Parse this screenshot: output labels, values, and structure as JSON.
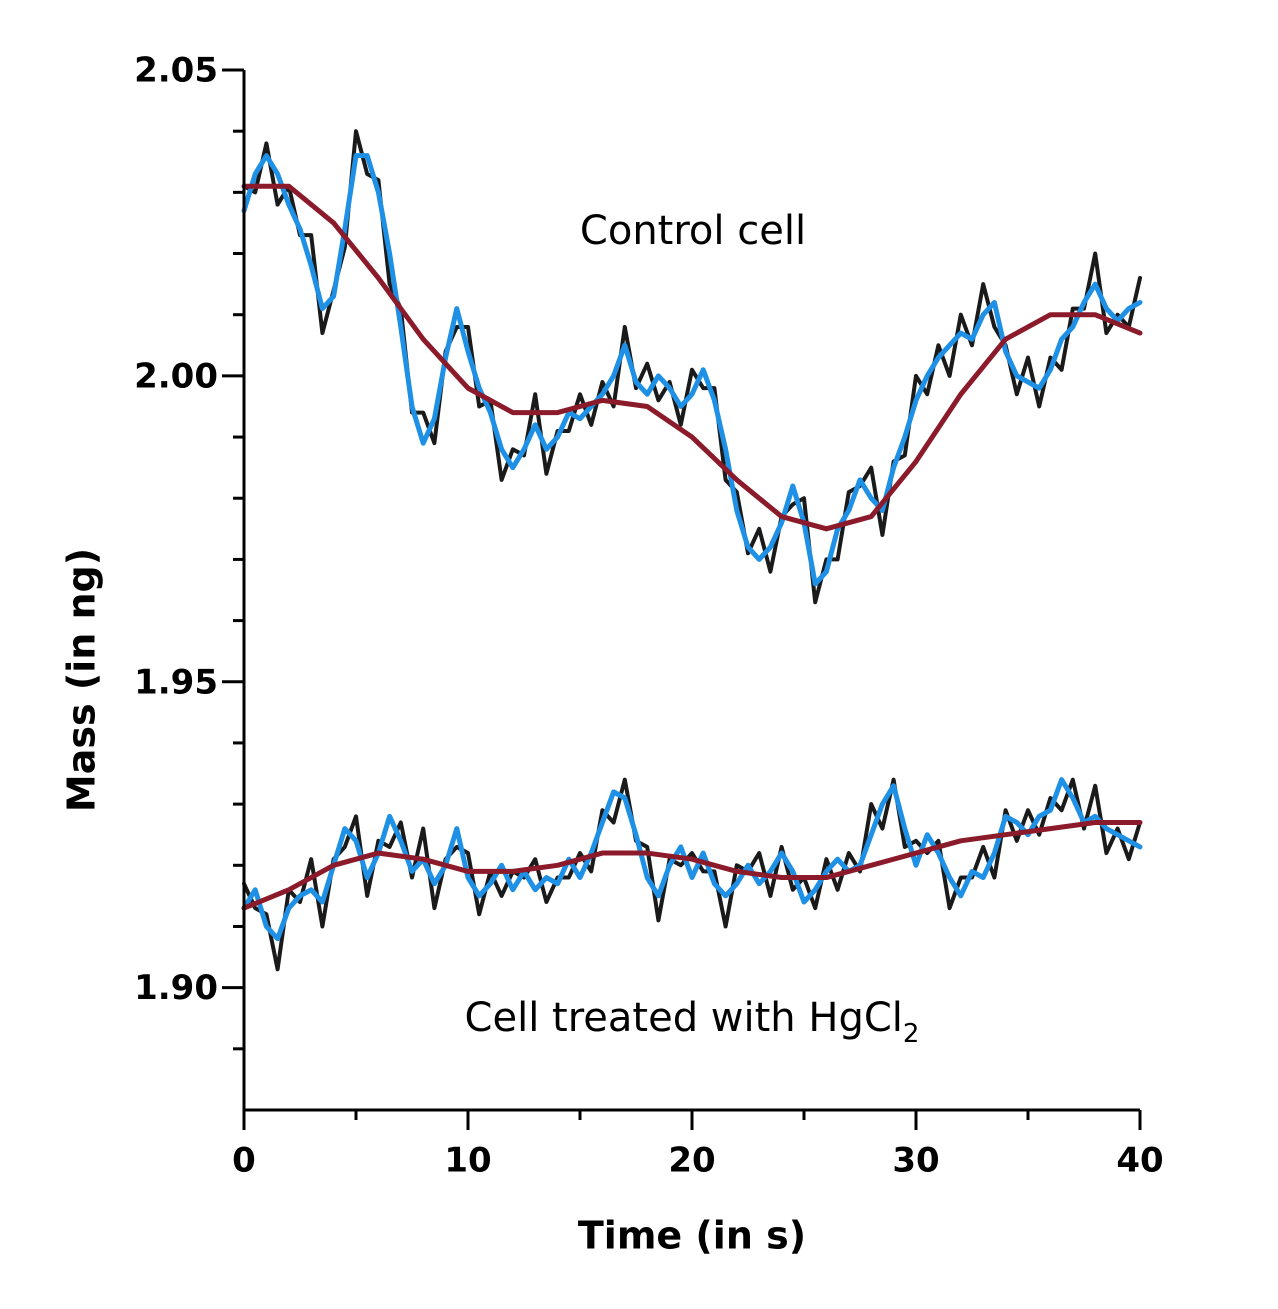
{
  "chart_data": {
    "type": "line",
    "xlabel": "Time (in s)",
    "ylabel": "Mass (in ng)",
    "annotations": [
      {
        "text": "Control cell"
      },
      {
        "text": "Cell treated with HgCl",
        "subscript": "2"
      }
    ],
    "xlim": [
      0,
      40
    ],
    "xticks": [
      0,
      10,
      20,
      30,
      40
    ],
    "xticks_minor": [
      5,
      15,
      25,
      35
    ],
    "ylim": [
      1.88,
      2.05
    ],
    "yticks": [
      {
        "value": 1.9,
        "label": "1.90"
      },
      1.95,
      {
        "value": 2,
        "label": "2.00"
      },
      2.05
    ],
    "yticks_minor": [
      1.89,
      1.91,
      1.92,
      1.93,
      1.94,
      1.96,
      1.97,
      1.98,
      1.99,
      2.01,
      2.02,
      2.03,
      2.04
    ],
    "x": [
      0,
      0.5,
      1,
      1.5,
      2,
      2.5,
      3,
      3.5,
      4,
      4.5,
      5,
      5.5,
      6,
      6.5,
      7,
      7.5,
      8,
      8.5,
      9,
      9.5,
      10,
      10.5,
      11,
      11.5,
      12,
      12.5,
      13,
      13.5,
      14,
      14.5,
      15,
      15.5,
      16,
      16.5,
      17,
      17.5,
      18,
      18.5,
      19,
      19.5,
      20,
      20.5,
      21,
      21.5,
      22,
      22.5,
      23,
      23.5,
      24,
      24.5,
      25,
      25.5,
      26,
      26.5,
      27,
      27.5,
      28,
      28.5,
      29,
      29.5,
      30,
      30.5,
      31,
      31.5,
      32,
      32.5,
      33,
      33.5,
      34,
      34.5,
      35,
      35.5,
      36,
      36.5,
      37,
      37.5,
      38,
      38.5,
      39,
      39.5,
      40
    ],
    "series": [
      {
        "color": "#1a1a1a",
        "width": 4,
        "values": [
          2.031,
          2.03,
          2.038,
          2.028,
          2.031,
          2.023,
          2.023,
          2.007,
          2.014,
          2.021,
          2.04,
          2.033,
          2.032,
          2.015,
          2.011,
          1.994,
          1.994,
          1.989,
          2.004,
          2.008,
          2.008,
          1.995,
          1.996,
          1.983,
          1.988,
          1.987,
          1.997,
          1.984,
          1.991,
          1.991,
          1.997,
          1.992,
          1.999,
          1.995,
          2.008,
          1.998,
          2.002,
          1.996,
          1.999,
          1.992,
          2.001,
          1.998,
          1.998,
          1.983,
          1.981,
          1.971,
          1.975,
          1.968,
          1.977,
          1.979,
          1.98,
          1.963,
          1.97,
          1.97,
          1.981,
          1.982,
          1.985,
          1.974,
          1.986,
          1.987,
          2.0,
          1.997,
          2.005,
          2.0,
          2.01,
          2.005,
          2.015,
          2.008,
          2.005,
          1.997,
          2.003,
          1.995,
          2.003,
          2.001,
          2.011,
          2.011,
          2.02,
          2.007,
          2.01,
          2.008,
          2.016
        ]
      },
      {
        "color": "#1e90e6",
        "width": 5,
        "values": [
          2.027,
          2.033,
          2.036,
          2.033,
          2.028,
          2.024,
          2.018,
          2.011,
          2.013,
          2.024,
          2.036,
          2.036,
          2.03,
          2.02,
          2.008,
          1.995,
          1.989,
          1.993,
          2.003,
          2.011,
          2.004,
          1.998,
          1.994,
          1.988,
          1.985,
          1.988,
          1.992,
          1.988,
          1.99,
          1.994,
          1.993,
          1.995,
          1.997,
          2.0,
          2.005,
          1.999,
          1.997,
          2.0,
          1.998,
          1.995,
          1.997,
          2.001,
          1.996,
          1.988,
          1.978,
          1.972,
          1.97,
          1.972,
          1.976,
          1.982,
          1.976,
          1.966,
          1.968,
          1.975,
          1.978,
          1.983,
          1.98,
          1.978,
          1.985,
          1.99,
          1.996,
          2.0,
          2.003,
          2.005,
          2.007,
          2.006,
          2.01,
          2.012,
          2.004,
          2.0,
          1.999,
          1.998,
          2.001,
          2.006,
          2.008,
          2.012,
          2.015,
          2.011,
          2.009,
          2.011,
          2.012
        ]
      },
      {
        "color": "#8b1a2a",
        "width": 5,
        "x": [
          0,
          2,
          4,
          6,
          8,
          10,
          12,
          14,
          16,
          18,
          20,
          22,
          24,
          26,
          28,
          30,
          32,
          34,
          36,
          38,
          40
        ],
        "values": [
          2.031,
          2.031,
          2.025,
          2.016,
          2.006,
          1.998,
          1.994,
          1.994,
          1.996,
          1.995,
          1.99,
          1.983,
          1.977,
          1.975,
          1.977,
          1.986,
          1.997,
          2.006,
          2.01,
          2.01,
          2.007
        ]
      },
      {
        "color": "#1a1a1a",
        "width": 4,
        "values": [
          1.917,
          1.913,
          1.912,
          1.903,
          1.916,
          1.914,
          1.921,
          1.91,
          1.921,
          1.923,
          1.928,
          1.915,
          1.924,
          1.923,
          1.927,
          1.918,
          1.926,
          1.913,
          1.921,
          1.923,
          1.922,
          1.912,
          1.919,
          1.915,
          1.919,
          1.918,
          1.921,
          1.914,
          1.918,
          1.918,
          1.922,
          1.919,
          1.929,
          1.927,
          1.934,
          1.924,
          1.923,
          1.911,
          1.921,
          1.92,
          1.922,
          1.919,
          1.919,
          1.91,
          1.92,
          1.919,
          1.922,
          1.915,
          1.923,
          1.916,
          1.918,
          1.913,
          1.921,
          1.916,
          1.922,
          1.919,
          1.93,
          1.926,
          1.934,
          1.923,
          1.924,
          1.922,
          1.924,
          1.913,
          1.918,
          1.918,
          1.923,
          1.918,
          1.929,
          1.924,
          1.929,
          1.925,
          1.931,
          1.929,
          1.934,
          1.926,
          1.933,
          1.922,
          1.926,
          1.921,
          1.927
        ]
      },
      {
        "color": "#1e90e6",
        "width": 5,
        "values": [
          1.913,
          1.916,
          1.91,
          1.908,
          1.913,
          1.915,
          1.916,
          1.914,
          1.92,
          1.926,
          1.924,
          1.918,
          1.922,
          1.928,
          1.924,
          1.919,
          1.921,
          1.917,
          1.92,
          1.926,
          1.918,
          1.915,
          1.917,
          1.92,
          1.916,
          1.919,
          1.916,
          1.918,
          1.917,
          1.921,
          1.918,
          1.922,
          1.927,
          1.932,
          1.931,
          1.925,
          1.918,
          1.915,
          1.92,
          1.923,
          1.918,
          1.922,
          1.917,
          1.915,
          1.917,
          1.92,
          1.917,
          1.919,
          1.922,
          1.919,
          1.914,
          1.916,
          1.919,
          1.921,
          1.919,
          1.92,
          1.925,
          1.93,
          1.933,
          1.926,
          1.92,
          1.925,
          1.922,
          1.918,
          1.915,
          1.919,
          1.918,
          1.922,
          1.928,
          1.927,
          1.925,
          1.928,
          1.929,
          1.934,
          1.931,
          1.927,
          1.928,
          1.926,
          1.925,
          1.924,
          1.923
        ]
      },
      {
        "color": "#8b1a2a",
        "width": 5,
        "x": [
          0,
          2,
          4,
          6,
          8,
          10,
          12,
          14,
          16,
          18,
          20,
          22,
          24,
          26,
          28,
          30,
          32,
          34,
          36,
          38,
          40
        ],
        "values": [
          1.913,
          1.916,
          1.92,
          1.922,
          1.921,
          1.919,
          1.919,
          1.92,
          1.922,
          1.922,
          1.921,
          1.919,
          1.918,
          1.918,
          1.92,
          1.922,
          1.924,
          1.925,
          1.926,
          1.927,
          1.927
        ]
      }
    ]
  }
}
